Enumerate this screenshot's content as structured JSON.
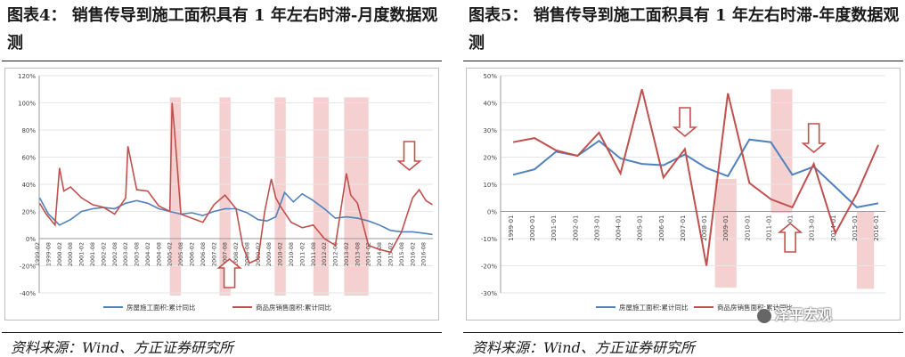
{
  "panels": [
    {
      "title": "图表4： 销售传导到施工面积具有 1 年左右时滞-月度数据观测",
      "source": "资料来源：Wind、方正证券研究所"
    },
    {
      "title": "图表5： 销售传导到施工面积具有 1 年左右时滞-年度数据观测",
      "source": "资料来源：Wind、方正证券研究所",
      "watermark": "泽平宏观"
    }
  ],
  "chart_data": [
    {
      "type": "line",
      "ylim": [
        -40,
        120
      ],
      "yticks": [
        "120%",
        "100%",
        "80%",
        "60%",
        "40%",
        "20%",
        "0%",
        "-20%",
        "-40%"
      ],
      "xticks": [
        "1999-02",
        "1999-08",
        "2000-02",
        "2000-08",
        "2001-02",
        "2001-08",
        "2002-02",
        "2002-08",
        "2003-02",
        "2003-08",
        "2004-02",
        "2004-08",
        "2005-02",
        "2005-08",
        "2006-02",
        "2006-08",
        "2007-02",
        "2007-08",
        "2008-02",
        "2008-08",
        "2009-02",
        "2009-08",
        "2010-02",
        "2010-08",
        "2011-02",
        "2011-08",
        "2012-02",
        "2012-08",
        "2013-02",
        "2013-08",
        "2014-02",
        "2014-08",
        "2015-02",
        "2015-08",
        "2016-02",
        "2016-08"
      ],
      "xstart": 1999.08,
      "xend": 2016.92,
      "series": [
        {
          "name": "房屋施工面积:累计同比",
          "color": "#4f81bd",
          "x": [
            1999.1,
            1999.5,
            2000.0,
            2000.5,
            2001.0,
            2001.5,
            2002.0,
            2002.5,
            2003.0,
            2003.5,
            2004.0,
            2004.5,
            2005.0,
            2005.5,
            2006.0,
            2006.5,
            2007.0,
            2007.5,
            2008.0,
            2008.5,
            2009.0,
            2009.4,
            2009.8,
            2010.2,
            2010.6,
            2011.0,
            2011.5,
            2012.0,
            2012.5,
            2013.0,
            2013.5,
            2014.0,
            2014.5,
            2015.0,
            2015.5,
            2016.0,
            2016.5,
            2016.9
          ],
          "values": [
            30,
            18,
            10,
            14,
            20,
            22,
            23,
            22,
            26,
            28,
            26,
            22,
            20,
            18,
            19,
            17,
            20,
            22,
            22,
            19,
            14,
            13,
            16,
            34,
            27,
            33,
            28,
            22,
            15,
            16,
            15,
            13,
            10,
            6,
            5,
            5,
            4,
            3
          ]
        },
        {
          "name": "商品房销售面积:累计同比",
          "color": "#c0504d",
          "x": [
            1999.1,
            1999.4,
            1999.8,
            2000.0,
            2000.2,
            2000.5,
            2001.0,
            2001.5,
            2002.0,
            2002.5,
            2003.0,
            2003.1,
            2003.5,
            2004.0,
            2004.5,
            2005.0,
            2005.1,
            2005.2,
            2005.5,
            2006.0,
            2006.5,
            2007.0,
            2007.5,
            2008.0,
            2008.3,
            2008.6,
            2009.0,
            2009.3,
            2009.6,
            2009.8,
            2010.0,
            2010.5,
            2011.0,
            2011.5,
            2012.0,
            2012.5,
            2013.0,
            2013.2,
            2013.5,
            2014.0,
            2014.5,
            2015.0,
            2015.5,
            2016.0,
            2016.3,
            2016.6,
            2016.9
          ],
          "values": [
            26,
            18,
            10,
            52,
            35,
            38,
            30,
            25,
            23,
            18,
            30,
            68,
            36,
            35,
            24,
            20,
            100,
            82,
            18,
            15,
            12,
            25,
            32,
            22,
            -5,
            -18,
            -15,
            20,
            44,
            30,
            24,
            12,
            8,
            10,
            0,
            -5,
            48,
            32,
            26,
            -5,
            -8,
            -10,
            5,
            30,
            36,
            28,
            25
          ]
        }
      ],
      "shaded": [
        [
          2005.0,
          2005.5
        ],
        [
          2007.25,
          2007.75
        ],
        [
          2009.75,
          2010.25
        ],
        [
          2011.5,
          2012.2
        ],
        [
          2012.9,
          2014.0
        ]
      ],
      "shaded_range": [
        -42,
        104
      ],
      "arrows": [
        {
          "x": 2007.7,
          "direction": "up"
        },
        {
          "x": 2015.85,
          "direction": "down"
        }
      ]
    },
    {
      "type": "line",
      "ylim": [
        -30,
        50
      ],
      "yticks": [
        "50%",
        "40%",
        "30%",
        "20%",
        "10%",
        "0%",
        "-10%",
        "-20%",
        "-30%"
      ],
      "categories": [
        "1999-01",
        "2000-01",
        "2001-01",
        "2002-01",
        "2003-01",
        "2004-01",
        "2005-01",
        "2006-01",
        "2007-01",
        "2008-01",
        "2009-01",
        "2010-01",
        "2011-01",
        "2012-01",
        "2013-01",
        "2014-01",
        "2015-01",
        "2016-01"
      ],
      "series": [
        {
          "name": "房屋施工面积:累计同比",
          "color": "#4f81bd",
          "values": [
            13.5,
            15.5,
            22,
            20.5,
            26,
            19.5,
            17.5,
            17,
            21,
            16,
            13,
            26.5,
            25.5,
            13.5,
            16.5,
            9,
            1.5,
            3
          ]
        },
        {
          "name": "商品房销售面积:累计同比",
          "color": "#c0504d",
          "values": [
            25.5,
            27,
            22.5,
            20.5,
            29,
            14,
            45,
            12.5,
            23,
            -20,
            43.5,
            10.5,
            4.5,
            1.5,
            17.5,
            -8,
            6.5,
            24.5
          ]
        }
      ],
      "shaded": [
        [
          9.4,
          10.4
        ],
        [
          12.0,
          13.0
        ],
        [
          16.0,
          16.8
        ]
      ],
      "shaded_ranges": [
        [
          -28,
          12
        ],
        [
          -0.5,
          45
        ],
        [
          -28.5,
          0
        ]
      ],
      "arrows": [
        {
          "x": 8.0,
          "direction": "down"
        },
        {
          "x": 12.9,
          "direction": "up"
        },
        {
          "x": 14.0,
          "direction": "down"
        }
      ]
    }
  ]
}
